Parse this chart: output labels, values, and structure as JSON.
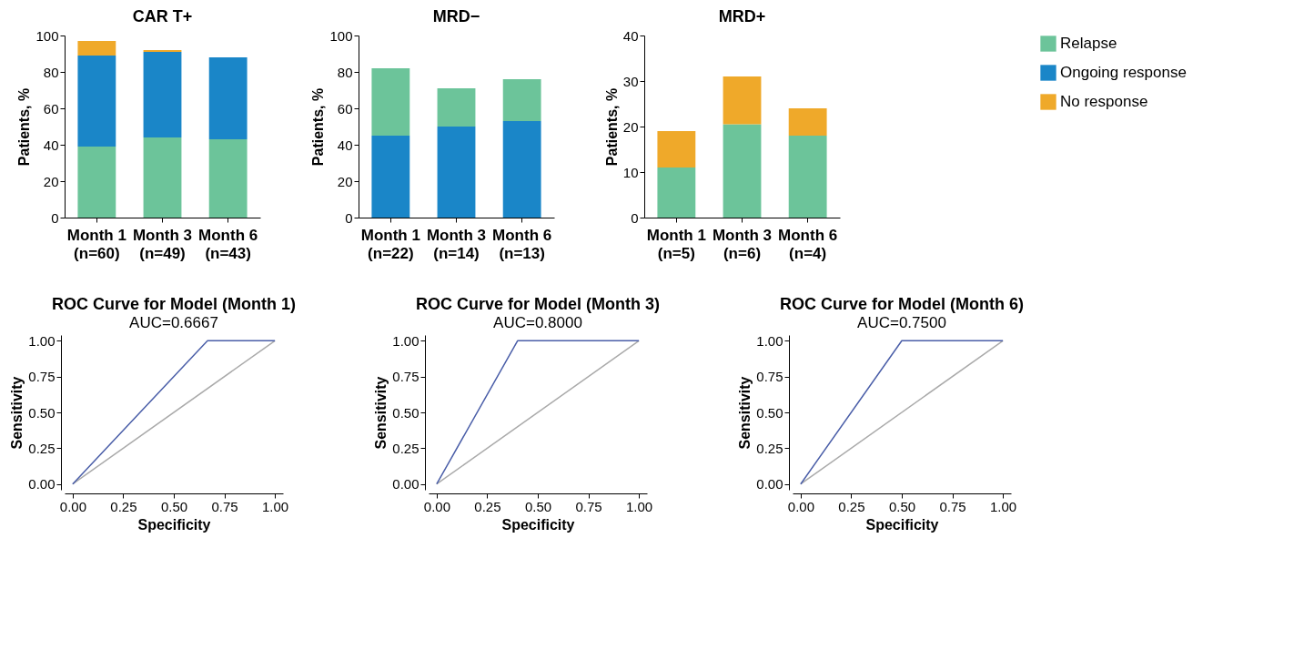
{
  "chart_data": [
    {
      "type": "bar",
      "title": "CAR T+",
      "ylabel": "Patients, %",
      "stacked": true,
      "grid": false,
      "legend": "right",
      "categories": [
        "Month 1\n(n=60)",
        "Month 3\n(n=49)",
        "Month 6\n(n=43)"
      ],
      "ylim": [
        0,
        100
      ],
      "yticks": [
        0,
        20,
        40,
        60,
        80,
        100
      ],
      "series": [
        {
          "name": "Relapse",
          "color": "#6cc49a",
          "values": [
            39,
            44,
            43
          ]
        },
        {
          "name": "Ongoing response",
          "color": "#1a86c8",
          "values": [
            50,
            47,
            45
          ]
        },
        {
          "name": "No response",
          "color": "#efa92a",
          "values": [
            8,
            1,
            0
          ]
        }
      ]
    },
    {
      "type": "bar",
      "title": "MRD−",
      "ylabel": "Patients, %",
      "stacked": true,
      "grid": false,
      "legend": "right",
      "categories": [
        "Month 1\n(n=22)",
        "Month 3\n(n=14)",
        "Month 6\n(n=13)"
      ],
      "ylim": [
        0,
        100
      ],
      "yticks": [
        0,
        20,
        40,
        60,
        80,
        100
      ],
      "series": [
        {
          "name": "Ongoing response",
          "color": "#1a86c8",
          "values": [
            45,
            50,
            53
          ]
        },
        {
          "name": "Relapse",
          "color": "#6cc49a",
          "values": [
            37,
            21,
            23
          ]
        }
      ]
    },
    {
      "type": "bar",
      "title": "MRD+",
      "ylabel": "Patients, %",
      "stacked": true,
      "grid": false,
      "legend": "right",
      "categories": [
        "Month 1\n(n=5)",
        "Month 3\n(n=6)",
        "Month 6\n(n=4)"
      ],
      "ylim": [
        0,
        40
      ],
      "yticks": [
        0,
        10,
        20,
        30,
        40
      ],
      "series": [
        {
          "name": "Relapse",
          "color": "#6cc49a",
          "values": [
            11,
            20.5,
            18
          ]
        },
        {
          "name": "No response",
          "color": "#efa92a",
          "values": [
            8,
            10.5,
            6
          ]
        }
      ]
    },
    {
      "type": "line",
      "title": "ROC Curve for Model (Month 1)",
      "subtitle": "AUC=0.6667",
      "xlabel": "Specificity",
      "ylabel": "Sensitivity",
      "grid": false,
      "marker": "none",
      "xlim": [
        -0.04,
        1.04
      ],
      "ylim": [
        -0.04,
        1.04
      ],
      "xticks": [
        {
          "value": 0,
          "label": "0.00"
        },
        {
          "value": 0.25,
          "label": "0.25"
        },
        {
          "value": 0.5,
          "label": "0.50"
        },
        {
          "value": 0.75,
          "label": "0.75"
        },
        {
          "value": 1,
          "label": "1.00"
        }
      ],
      "yticks": [
        {
          "value": 0,
          "label": "0.00"
        },
        {
          "value": 0.25,
          "label": "0.25"
        },
        {
          "value": 0.5,
          "label": "0.50"
        },
        {
          "value": 0.75,
          "label": "0.75"
        },
        {
          "value": 1,
          "label": "1.00"
        }
      ],
      "series": [
        {
          "color": "#aaaaaa",
          "x": [
            0,
            1
          ],
          "values": [
            0,
            1
          ]
        },
        {
          "color": "#4a5ea8",
          "x": [
            0,
            0.6667,
            1
          ],
          "values": [
            0,
            1,
            1
          ]
        }
      ]
    },
    {
      "type": "line",
      "title": "ROC Curve for Model (Month 3)",
      "subtitle": "AUC=0.8000",
      "xlabel": "Specificity",
      "ylabel": "Sensitivity",
      "grid": false,
      "marker": "none",
      "xlim": [
        -0.04,
        1.04
      ],
      "ylim": [
        -0.04,
        1.04
      ],
      "xticks": [
        {
          "value": 0,
          "label": "0.00"
        },
        {
          "value": 0.25,
          "label": "0.25"
        },
        {
          "value": 0.5,
          "label": "0.50"
        },
        {
          "value": 0.75,
          "label": "0.75"
        },
        {
          "value": 1,
          "label": "1.00"
        }
      ],
      "yticks": [
        {
          "value": 0,
          "label": "0.00"
        },
        {
          "value": 0.25,
          "label": "0.25"
        },
        {
          "value": 0.5,
          "label": "0.50"
        },
        {
          "value": 0.75,
          "label": "0.75"
        },
        {
          "value": 1,
          "label": "1.00"
        }
      ],
      "series": [
        {
          "color": "#aaaaaa",
          "x": [
            0,
            1
          ],
          "values": [
            0,
            1
          ]
        },
        {
          "color": "#4a5ea8",
          "x": [
            0,
            0.4,
            1
          ],
          "values": [
            0,
            1,
            1
          ]
        }
      ]
    },
    {
      "type": "line",
      "title": "ROC Curve for Model (Month 6)",
      "subtitle": "AUC=0.7500",
      "xlabel": "Specificity",
      "ylabel": "Sensitivity",
      "grid": false,
      "marker": "none",
      "xlim": [
        -0.04,
        1.04
      ],
      "ylim": [
        -0.04,
        1.04
      ],
      "xticks": [
        {
          "value": 0,
          "label": "0.00"
        },
        {
          "value": 0.25,
          "label": "0.25"
        },
        {
          "value": 0.5,
          "label": "0.50"
        },
        {
          "value": 0.75,
          "label": "0.75"
        },
        {
          "value": 1,
          "label": "1.00"
        }
      ],
      "yticks": [
        {
          "value": 0,
          "label": "0.00"
        },
        {
          "value": 0.25,
          "label": "0.25"
        },
        {
          "value": 0.5,
          "label": "0.50"
        },
        {
          "value": 0.75,
          "label": "0.75"
        },
        {
          "value": 1,
          "label": "1.00"
        }
      ],
      "series": [
        {
          "color": "#aaaaaa",
          "x": [
            0,
            1
          ],
          "values": [
            0,
            1
          ]
        },
        {
          "color": "#4a5ea8",
          "x": [
            0,
            0.5,
            1
          ],
          "values": [
            0,
            1,
            1
          ]
        }
      ]
    }
  ]
}
